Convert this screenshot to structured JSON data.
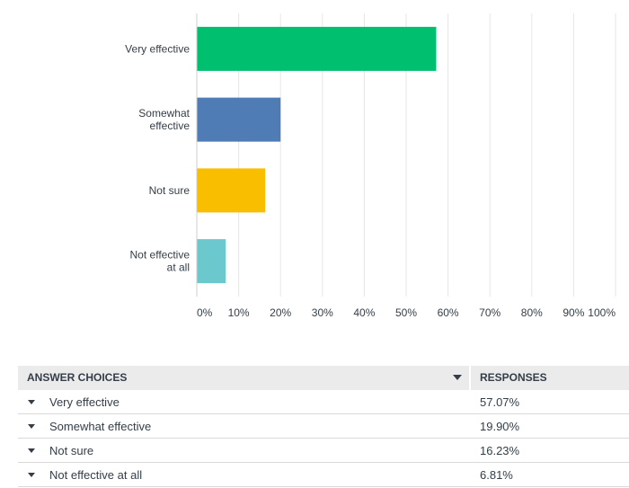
{
  "chart_data": {
    "type": "bar",
    "orientation": "horizontal",
    "categories": [
      "Very effective",
      "Somewhat effective",
      "Not sure",
      "Not effective at all"
    ],
    "category_lines": [
      [
        "Very effective"
      ],
      [
        "Somewhat",
        "effective"
      ],
      [
        "Not sure"
      ],
      [
        "Not effective",
        "at all"
      ]
    ],
    "values": [
      57.07,
      19.9,
      16.23,
      6.81
    ],
    "colors": [
      "#00bf6f",
      "#507cb6",
      "#f9be00",
      "#6bc8cd"
    ],
    "xlim": [
      0,
      100
    ],
    "xticks": [
      0,
      10,
      20,
      30,
      40,
      50,
      60,
      70,
      80,
      90,
      100
    ],
    "xtick_labels": [
      "0%",
      "10%",
      "20%",
      "30%",
      "40%",
      "50%",
      "60%",
      "70%",
      "80%",
      "90%",
      "100%"
    ],
    "grid": true
  },
  "table": {
    "header_choices": "ANSWER CHOICES",
    "header_responses": "RESPONSES",
    "rows": [
      {
        "choice": "Very effective",
        "response": "57.07%"
      },
      {
        "choice": "Somewhat effective",
        "response": "19.90%"
      },
      {
        "choice": "Not sure",
        "response": "16.23%"
      },
      {
        "choice": "Not effective at all",
        "response": "6.81%"
      }
    ]
  }
}
